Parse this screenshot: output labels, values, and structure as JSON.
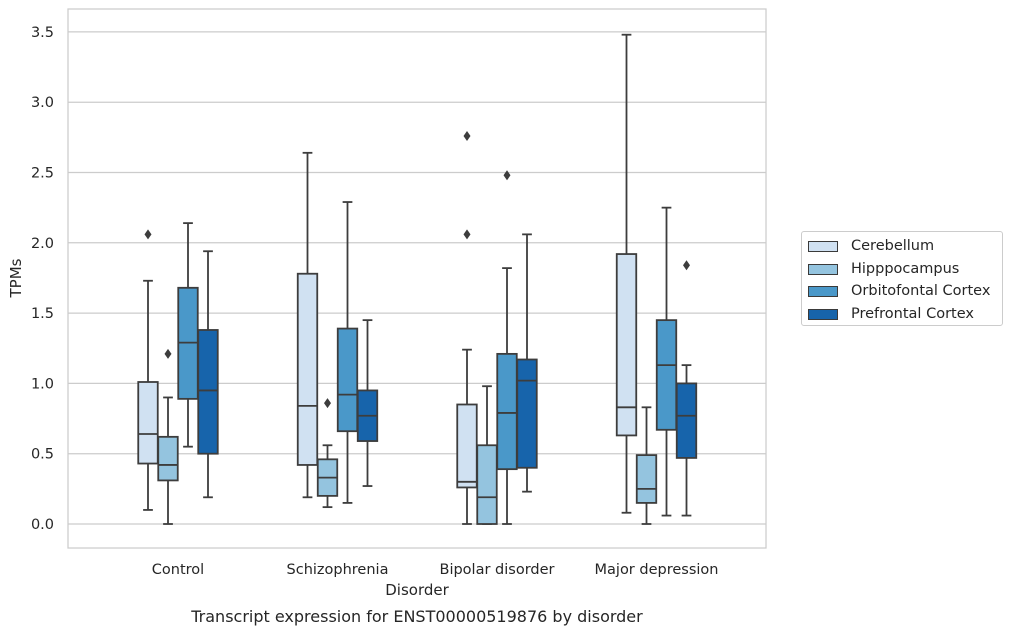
{
  "chart_data": {
    "type": "boxplot",
    "title": "",
    "caption": "Transcript expression for ENST00000519876 by disorder",
    "xlabel": "Disorder",
    "ylabel": "TPMs",
    "ylim": [
      -0.17,
      3.65
    ],
    "yticks": [
      "0.0",
      "0.5",
      "1.0",
      "1.5",
      "2.0",
      "2.5",
      "3.0",
      "3.5"
    ],
    "grid": "horizontal",
    "legend_position": "right",
    "categories": [
      "Control",
      "Schizophrenia",
      "Bipolar disorder",
      "Major depression"
    ],
    "series": [
      {
        "name": "Cerebellum",
        "color": "#d0e1f2",
        "boxes": [
          {
            "whislo": 0.1,
            "q1": 0.43,
            "med": 0.64,
            "q3": 1.01,
            "whishi": 1.73,
            "fliers": [
              2.06
            ]
          },
          {
            "whislo": 0.19,
            "q1": 0.42,
            "med": 0.84,
            "q3": 1.78,
            "whishi": 2.64,
            "fliers": []
          },
          {
            "whislo": 0.0,
            "q1": 0.26,
            "med": 0.3,
            "q3": 0.85,
            "whishi": 1.24,
            "fliers": [
              2.06,
              2.76
            ]
          },
          {
            "whislo": 0.08,
            "q1": 0.63,
            "med": 0.83,
            "q3": 1.92,
            "whishi": 3.48,
            "fliers": []
          }
        ]
      },
      {
        "name": "Hipppocampus",
        "color": "#94c4df",
        "boxes": [
          {
            "whislo": 0.0,
            "q1": 0.31,
            "med": 0.42,
            "q3": 0.62,
            "whishi": 0.9,
            "fliers": [
              1.21
            ]
          },
          {
            "whislo": 0.12,
            "q1": 0.2,
            "med": 0.33,
            "q3": 0.46,
            "whishi": 0.56,
            "fliers": [
              0.86
            ]
          },
          {
            "whislo": 0.0,
            "q1": 0.0,
            "med": 0.19,
            "q3": 0.56,
            "whishi": 0.98,
            "fliers": []
          },
          {
            "whislo": 0.0,
            "q1": 0.15,
            "med": 0.25,
            "q3": 0.49,
            "whishi": 0.83,
            "fliers": []
          }
        ]
      },
      {
        "name": "Orbitofontal Cortex",
        "color": "#4a98c9",
        "boxes": [
          {
            "whislo": 0.55,
            "q1": 0.89,
            "med": 1.29,
            "q3": 1.68,
            "whishi": 2.14,
            "fliers": []
          },
          {
            "whislo": 0.15,
            "q1": 0.66,
            "med": 0.92,
            "q3": 1.39,
            "whishi": 2.29,
            "fliers": []
          },
          {
            "whislo": 0.0,
            "q1": 0.39,
            "med": 0.79,
            "q3": 1.21,
            "whishi": 1.82,
            "fliers": [
              2.48
            ]
          },
          {
            "whislo": 0.06,
            "q1": 0.67,
            "med": 1.13,
            "q3": 1.45,
            "whishi": 2.25,
            "fliers": []
          }
        ]
      },
      {
        "name": "Prefrontal Cortex",
        "color": "#1764ab",
        "boxes": [
          {
            "whislo": 0.19,
            "q1": 0.5,
            "med": 0.95,
            "q3": 1.38,
            "whishi": 1.94,
            "fliers": []
          },
          {
            "whislo": 0.27,
            "q1": 0.59,
            "med": 0.77,
            "q3": 0.95,
            "whishi": 1.45,
            "fliers": []
          },
          {
            "whislo": 0.23,
            "q1": 0.4,
            "med": 1.02,
            "q3": 1.17,
            "whishi": 2.06,
            "fliers": []
          },
          {
            "whislo": 0.06,
            "q1": 0.47,
            "med": 0.77,
            "q3": 1.0,
            "whishi": 1.13,
            "fliers": [
              1.84
            ]
          }
        ]
      }
    ]
  }
}
